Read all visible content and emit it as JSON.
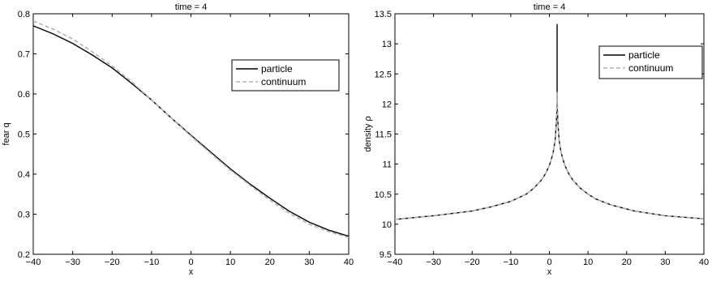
{
  "chart_data": [
    {
      "type": "line",
      "title": "time = 4",
      "xlabel": "x",
      "ylabel": "fear q",
      "xlim": [
        -40,
        40
      ],
      "ylim": [
        0.2,
        0.8
      ],
      "xticks": [
        -40,
        -30,
        -20,
        -10,
        0,
        10,
        20,
        30,
        40
      ],
      "yticks": [
        0.2,
        0.3,
        0.4,
        0.5,
        0.6,
        0.7,
        0.8
      ],
      "grid": false,
      "legend_position": "top-right",
      "series": [
        {
          "name": "particle",
          "color": "#000000",
          "style": "solid",
          "x": [
            -40,
            -35,
            -30,
            -25,
            -20,
            -15,
            -10,
            -5,
            0,
            5,
            10,
            15,
            20,
            25,
            30,
            35,
            40
          ],
          "y": [
            0.77,
            0.75,
            0.726,
            0.697,
            0.665,
            0.626,
            0.585,
            0.54,
            0.497,
            0.455,
            0.413,
            0.375,
            0.34,
            0.307,
            0.28,
            0.26,
            0.245
          ]
        },
        {
          "name": "continuum",
          "color": "#b3b3b3",
          "style": "dashed",
          "x": [
            -40,
            -35,
            -30,
            -25,
            -20,
            -15,
            -10,
            -5,
            0,
            5,
            10,
            15,
            20,
            25,
            30,
            35,
            40
          ],
          "y": [
            0.782,
            0.762,
            0.737,
            0.705,
            0.67,
            0.63,
            0.585,
            0.54,
            0.495,
            0.452,
            0.41,
            0.372,
            0.335,
            0.302,
            0.275,
            0.256,
            0.242
          ]
        }
      ]
    },
    {
      "type": "line",
      "title": "time = 4",
      "xlabel": "x",
      "ylabel": "density ρ",
      "xlim": [
        -40,
        40
      ],
      "ylim": [
        9.5,
        13.5
      ],
      "xticks": [
        -40,
        -30,
        -20,
        -10,
        0,
        10,
        20,
        30,
        40
      ],
      "yticks": [
        9.5,
        10,
        10.5,
        11,
        11.5,
        12,
        12.5,
        13,
        13.5
      ],
      "grid": false,
      "legend_position": "top-right",
      "series": [
        {
          "name": "particle",
          "color": "#000000",
          "style": "solid",
          "x": [
            -40,
            -30,
            -20,
            -15,
            -10,
            -6,
            -4,
            -2,
            -1,
            0,
            0.5,
            1,
            1.5,
            1.8,
            2,
            2,
            2,
            2.2,
            2.5,
            3,
            3.5,
            4,
            5,
            6,
            8,
            10,
            12,
            16,
            22,
            30,
            40
          ],
          "y": [
            10.08,
            10.14,
            10.22,
            10.29,
            10.38,
            10.5,
            10.6,
            10.74,
            10.84,
            10.98,
            11.08,
            11.2,
            11.4,
            11.7,
            12.0,
            13.32,
            12.0,
            11.7,
            11.4,
            11.2,
            11.08,
            10.98,
            10.84,
            10.74,
            10.6,
            10.5,
            10.42,
            10.32,
            10.22,
            10.14,
            10.09
          ]
        },
        {
          "name": "continuum",
          "color": "#b3b3b3",
          "style": "dashed",
          "x": [
            -40,
            -30,
            -20,
            -15,
            -10,
            -6,
            -4,
            -2,
            -1,
            0,
            0.5,
            1,
            1.5,
            1.8,
            2,
            2.2,
            2.5,
            3,
            3.5,
            4,
            5,
            6,
            8,
            10,
            12,
            16,
            22,
            30,
            40
          ],
          "y": [
            10.08,
            10.14,
            10.22,
            10.29,
            10.38,
            10.5,
            10.6,
            10.74,
            10.84,
            10.98,
            11.08,
            11.2,
            11.4,
            11.7,
            12.2,
            11.7,
            11.4,
            11.2,
            11.08,
            10.98,
            10.84,
            10.74,
            10.6,
            10.5,
            10.42,
            10.32,
            10.22,
            10.14,
            10.09
          ]
        }
      ]
    }
  ]
}
